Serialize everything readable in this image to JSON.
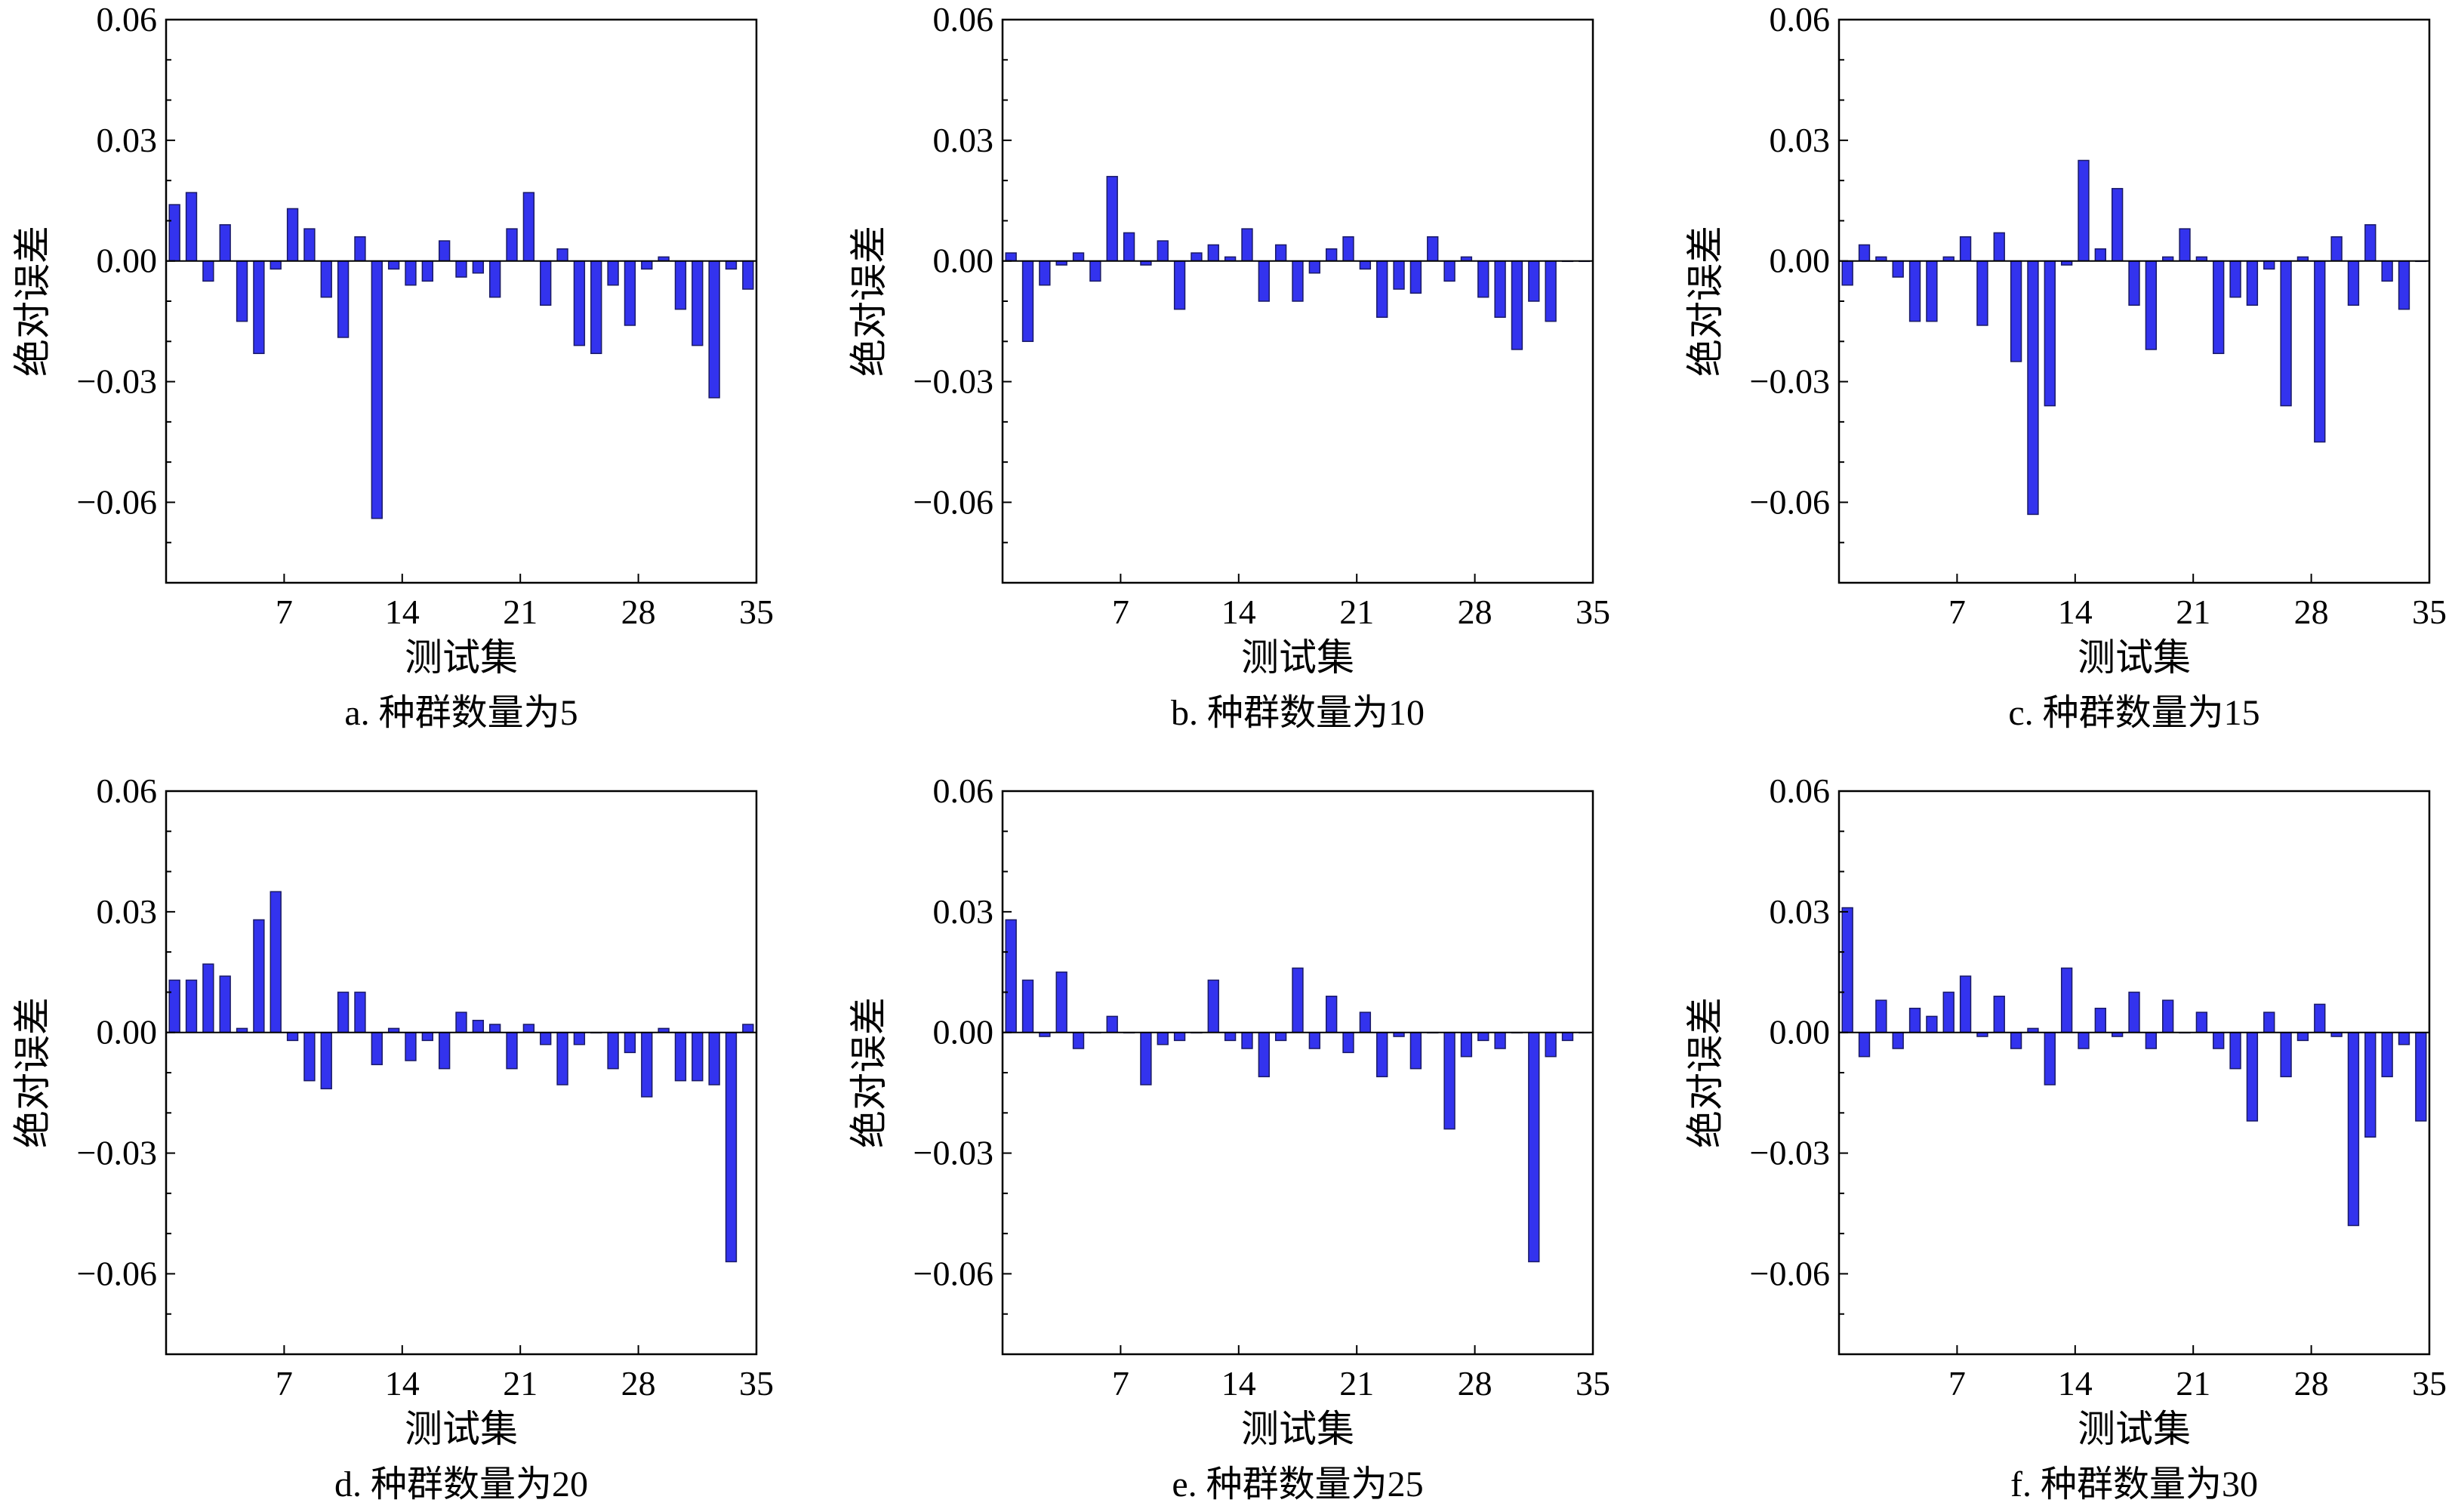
{
  "figure": {
    "y_axis_label": "绝对误差",
    "x_axis_label": "测试集",
    "bar_color": "#3333ee"
  },
  "chart_data": [
    {
      "type": "bar",
      "caption": "a. 种群数量为5",
      "xlabel": "测试集",
      "ylabel": "绝对误差",
      "xlim": [
        0,
        35
      ],
      "ylim": [
        -0.08,
        0.06
      ],
      "xticks": [
        "7",
        "14",
        "21",
        "28",
        "35"
      ],
      "yticks": [
        "0.06",
        "0.03",
        "0.00",
        "−0.03",
        "−0.06"
      ],
      "grid": false,
      "x": [
        1,
        2,
        3,
        4,
        5,
        6,
        7,
        8,
        9,
        10,
        11,
        12,
        13,
        14,
        15,
        16,
        17,
        18,
        19,
        20,
        21,
        22,
        23,
        24,
        25,
        26,
        27,
        28,
        29,
        30,
        31,
        32,
        33,
        34,
        35
      ],
      "values": [
        0.014,
        0.017,
        -0.005,
        0.009,
        -0.015,
        -0.023,
        -0.002,
        0.013,
        0.008,
        -0.009,
        -0.019,
        0.006,
        -0.064,
        -0.002,
        -0.006,
        -0.005,
        0.005,
        -0.004,
        -0.003,
        -0.009,
        0.008,
        0.017,
        -0.011,
        0.003,
        -0.021,
        -0.023,
        -0.006,
        -0.016,
        -0.002,
        0.001,
        -0.012,
        -0.021,
        -0.034,
        -0.002,
        -0.007
      ]
    },
    {
      "type": "bar",
      "caption": "b. 种群数量为10",
      "xlabel": "测试集",
      "ylabel": "绝对误差",
      "xlim": [
        0,
        35
      ],
      "ylim": [
        -0.08,
        0.06
      ],
      "xticks": [
        "7",
        "14",
        "21",
        "28",
        "35"
      ],
      "yticks": [
        "0.06",
        "0.03",
        "0.00",
        "−0.03",
        "−0.06"
      ],
      "grid": false,
      "x": [
        1,
        2,
        3,
        4,
        5,
        6,
        7,
        8,
        9,
        10,
        11,
        12,
        13,
        14,
        15,
        16,
        17,
        18,
        19,
        20,
        21,
        22,
        23,
        24,
        25,
        26,
        27,
        28,
        29,
        30,
        31,
        32,
        33,
        34,
        35
      ],
      "values": [
        0.002,
        -0.02,
        -0.006,
        -0.001,
        0.002,
        -0.005,
        0.021,
        0.007,
        -0.001,
        0.005,
        -0.012,
        0.002,
        0.004,
        0.001,
        0.008,
        -0.01,
        0.004,
        -0.01,
        -0.003,
        0.003,
        0.006,
        -0.002,
        -0.014,
        -0.007,
        -0.008,
        0.006,
        -0.005,
        0.001,
        -0.009,
        -0.014,
        -0.022,
        -0.01,
        -0.015,
        0,
        0
      ]
    },
    {
      "type": "bar",
      "caption": "c. 种群数量为15",
      "xlabel": "测试集",
      "ylabel": "绝对误差",
      "xlim": [
        0,
        35
      ],
      "ylim": [
        -0.08,
        0.06
      ],
      "xticks": [
        "7",
        "14",
        "21",
        "28",
        "35"
      ],
      "yticks": [
        "0.06",
        "0.03",
        "0.00",
        "−0.03",
        "−0.06"
      ],
      "grid": false,
      "x": [
        1,
        2,
        3,
        4,
        5,
        6,
        7,
        8,
        9,
        10,
        11,
        12,
        13,
        14,
        15,
        16,
        17,
        18,
        19,
        20,
        21,
        22,
        23,
        24,
        25,
        26,
        27,
        28,
        29,
        30,
        31,
        32,
        33,
        34,
        35
      ],
      "values": [
        -0.006,
        0.004,
        0.001,
        -0.004,
        -0.015,
        -0.015,
        0.001,
        0.006,
        -0.016,
        0.007,
        -0.025,
        -0.063,
        -0.036,
        -0.001,
        0.025,
        0.003,
        0.018,
        -0.011,
        -0.022,
        0.001,
        0.008,
        0.001,
        -0.023,
        -0.009,
        -0.011,
        -0.002,
        -0.036,
        0.001,
        -0.045,
        0.006,
        -0.011,
        0.009,
        -0.005,
        -0.012,
        0
      ]
    },
    {
      "type": "bar",
      "caption": "d. 种群数量为20",
      "xlabel": "测试集",
      "ylabel": "绝对误差",
      "xlim": [
        0,
        35
      ],
      "ylim": [
        -0.08,
        0.06
      ],
      "xticks": [
        "7",
        "14",
        "21",
        "28",
        "35"
      ],
      "yticks": [
        "0.06",
        "0.03",
        "0.00",
        "−0.03",
        "−0.06"
      ],
      "grid": false,
      "x": [
        1,
        2,
        3,
        4,
        5,
        6,
        7,
        8,
        9,
        10,
        11,
        12,
        13,
        14,
        15,
        16,
        17,
        18,
        19,
        20,
        21,
        22,
        23,
        24,
        25,
        26,
        27,
        28,
        29,
        30,
        31,
        32,
        33,
        34,
        35
      ],
      "values": [
        0.013,
        0.013,
        0.017,
        0.014,
        0.001,
        0.028,
        0.035,
        -0.002,
        -0.012,
        -0.014,
        0.01,
        0.01,
        -0.008,
        0.001,
        -0.007,
        -0.002,
        -0.009,
        0.005,
        0.003,
        0.002,
        -0.009,
        0.002,
        -0.003,
        -0.013,
        -0.003,
        0,
        -0.009,
        -0.005,
        -0.016,
        0.001,
        -0.012,
        -0.012,
        -0.013,
        -0.057,
        0.002
      ]
    },
    {
      "type": "bar",
      "caption": "e. 种群数量为25",
      "xlabel": "测试集",
      "ylabel": "绝对误差",
      "xlim": [
        0,
        35
      ],
      "ylim": [
        -0.08,
        0.06
      ],
      "xticks": [
        "7",
        "14",
        "21",
        "28",
        "35"
      ],
      "yticks": [
        "0.06",
        "0.03",
        "0.00",
        "−0.03",
        "−0.06"
      ],
      "grid": false,
      "x": [
        1,
        2,
        3,
        4,
        5,
        6,
        7,
        8,
        9,
        10,
        11,
        12,
        13,
        14,
        15,
        16,
        17,
        18,
        19,
        20,
        21,
        22,
        23,
        24,
        25,
        26,
        27,
        28,
        29,
        30,
        31,
        32,
        33,
        34,
        35
      ],
      "values": [
        0.028,
        0.013,
        -0.001,
        0.015,
        -0.004,
        0,
        0.004,
        0,
        -0.013,
        -0.003,
        -0.002,
        0,
        0.013,
        -0.002,
        -0.004,
        -0.011,
        -0.002,
        0.016,
        -0.004,
        0.009,
        -0.005,
        0.005,
        -0.011,
        -0.001,
        -0.009,
        0,
        -0.024,
        -0.006,
        -0.002,
        -0.004,
        0,
        -0.057,
        -0.006,
        -0.002,
        0
      ]
    },
    {
      "type": "bar",
      "caption": "f. 种群数量为30",
      "xlabel": "测试集",
      "ylabel": "绝对误差",
      "xlim": [
        0,
        35
      ],
      "ylim": [
        -0.08,
        0.06
      ],
      "xticks": [
        "7",
        "14",
        "21",
        "28",
        "35"
      ],
      "yticks": [
        "0.06",
        "0.03",
        "0.00",
        "−0.03",
        "−0.06"
      ],
      "grid": false,
      "x": [
        1,
        2,
        3,
        4,
        5,
        6,
        7,
        8,
        9,
        10,
        11,
        12,
        13,
        14,
        15,
        16,
        17,
        18,
        19,
        20,
        21,
        22,
        23,
        24,
        25,
        26,
        27,
        28,
        29,
        30,
        31,
        32,
        33,
        34,
        35
      ],
      "values": [
        0.031,
        -0.006,
        0.008,
        -0.004,
        0.006,
        0.004,
        0.01,
        0.014,
        -0.001,
        0.009,
        -0.004,
        0.001,
        -0.013,
        0.016,
        -0.004,
        0.006,
        -0.001,
        0.01,
        -0.004,
        0.008,
        0,
        0.005,
        -0.004,
        -0.009,
        -0.022,
        0.005,
        -0.011,
        -0.002,
        0.007,
        -0.001,
        -0.048,
        -0.026,
        -0.011,
        -0.003,
        -0.022
      ]
    }
  ]
}
